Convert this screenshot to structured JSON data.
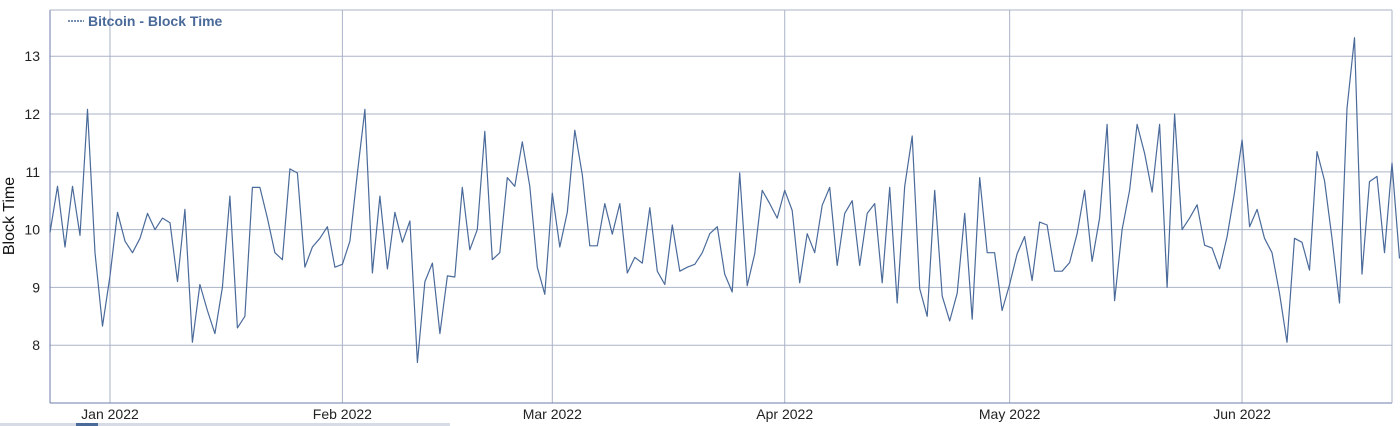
{
  "chart_data": {
    "type": "line",
    "ylabel": "Block Time",
    "xlabel": "",
    "title": "",
    "xlim": [
      "2021-12-24",
      "2022-06-21"
    ],
    "ylim": [
      7.0,
      13.8
    ],
    "yticks": [
      8,
      9,
      10,
      11,
      12,
      13
    ],
    "xticks": [
      {
        "date": "2022-01-01",
        "label": "Jan 2022"
      },
      {
        "date": "2022-02-01",
        "label": "Feb 2022"
      },
      {
        "date": "2022-03-01",
        "label": "Mar 2022"
      },
      {
        "date": "2022-04-01",
        "label": "Apr 2022"
      },
      {
        "date": "2022-05-01",
        "label": "May 2022"
      },
      {
        "date": "2022-06-01",
        "label": "Jun 2022"
      }
    ],
    "grid": true,
    "legend_position": "top-left",
    "colors": {
      "series": "#4a6a9a",
      "grid": "#aab3c8",
      "axis": "#6b7da8"
    },
    "series": [
      {
        "name": "Bitcoin - Block Time",
        "start_date": "2021-12-24",
        "interval_days": 1,
        "values": [
          9.95,
          10.75,
          9.7,
          10.75,
          9.9,
          12.08,
          9.6,
          8.33,
          9.2,
          10.3,
          9.8,
          9.6,
          9.85,
          10.28,
          10.0,
          10.2,
          10.12,
          9.1,
          10.35,
          8.05,
          9.05,
          8.6,
          8.2,
          9.0,
          10.58,
          8.3,
          8.5,
          10.73,
          10.73,
          10.2,
          9.6,
          9.48,
          11.05,
          10.98,
          9.35,
          9.7,
          9.85,
          10.05,
          9.35,
          9.4,
          9.8,
          10.98,
          12.08,
          9.25,
          10.58,
          9.32,
          10.3,
          9.78,
          10.15,
          7.7,
          9.1,
          9.42,
          8.2,
          9.2,
          9.18,
          10.73,
          9.65,
          10.0,
          11.7,
          9.48,
          9.6,
          10.9,
          10.75,
          11.52,
          10.75,
          9.35,
          8.88,
          10.63,
          9.7,
          10.3,
          11.72,
          10.95,
          9.72,
          9.72,
          10.45,
          9.92,
          10.45,
          9.25,
          9.52,
          9.42,
          10.38,
          9.28,
          9.05,
          10.08,
          9.28,
          9.35,
          9.4,
          9.6,
          9.93,
          10.05,
          9.23,
          8.92,
          10.98,
          9.03,
          9.58,
          10.68,
          10.45,
          10.2,
          10.68,
          10.33,
          9.08,
          9.93,
          9.6,
          10.42,
          10.73,
          9.38,
          10.28,
          10.5,
          9.38,
          10.28,
          10.45,
          9.08,
          10.73,
          8.73,
          10.75,
          11.62,
          8.98,
          8.5,
          10.68,
          8.85,
          8.42,
          8.9,
          10.28,
          8.45,
          10.9,
          9.6,
          9.6,
          8.6,
          9.05,
          9.58,
          9.88,
          9.12,
          10.13,
          10.08,
          9.28,
          9.28,
          9.43,
          9.93,
          10.68,
          9.45,
          10.2,
          11.82,
          8.77,
          10.0,
          10.68,
          11.82,
          11.32,
          10.65,
          11.82,
          9.0,
          12.0,
          10.0,
          10.2,
          10.43,
          9.73,
          9.68,
          9.32,
          9.88,
          10.65,
          11.55,
          10.05,
          10.35,
          9.85,
          9.6,
          8.9,
          8.05,
          9.85,
          9.78,
          9.3,
          11.35,
          10.85,
          9.85,
          8.73,
          12.1,
          13.32,
          9.23,
          10.83,
          10.92,
          9.6,
          11.15,
          9.5
        ]
      }
    ]
  }
}
